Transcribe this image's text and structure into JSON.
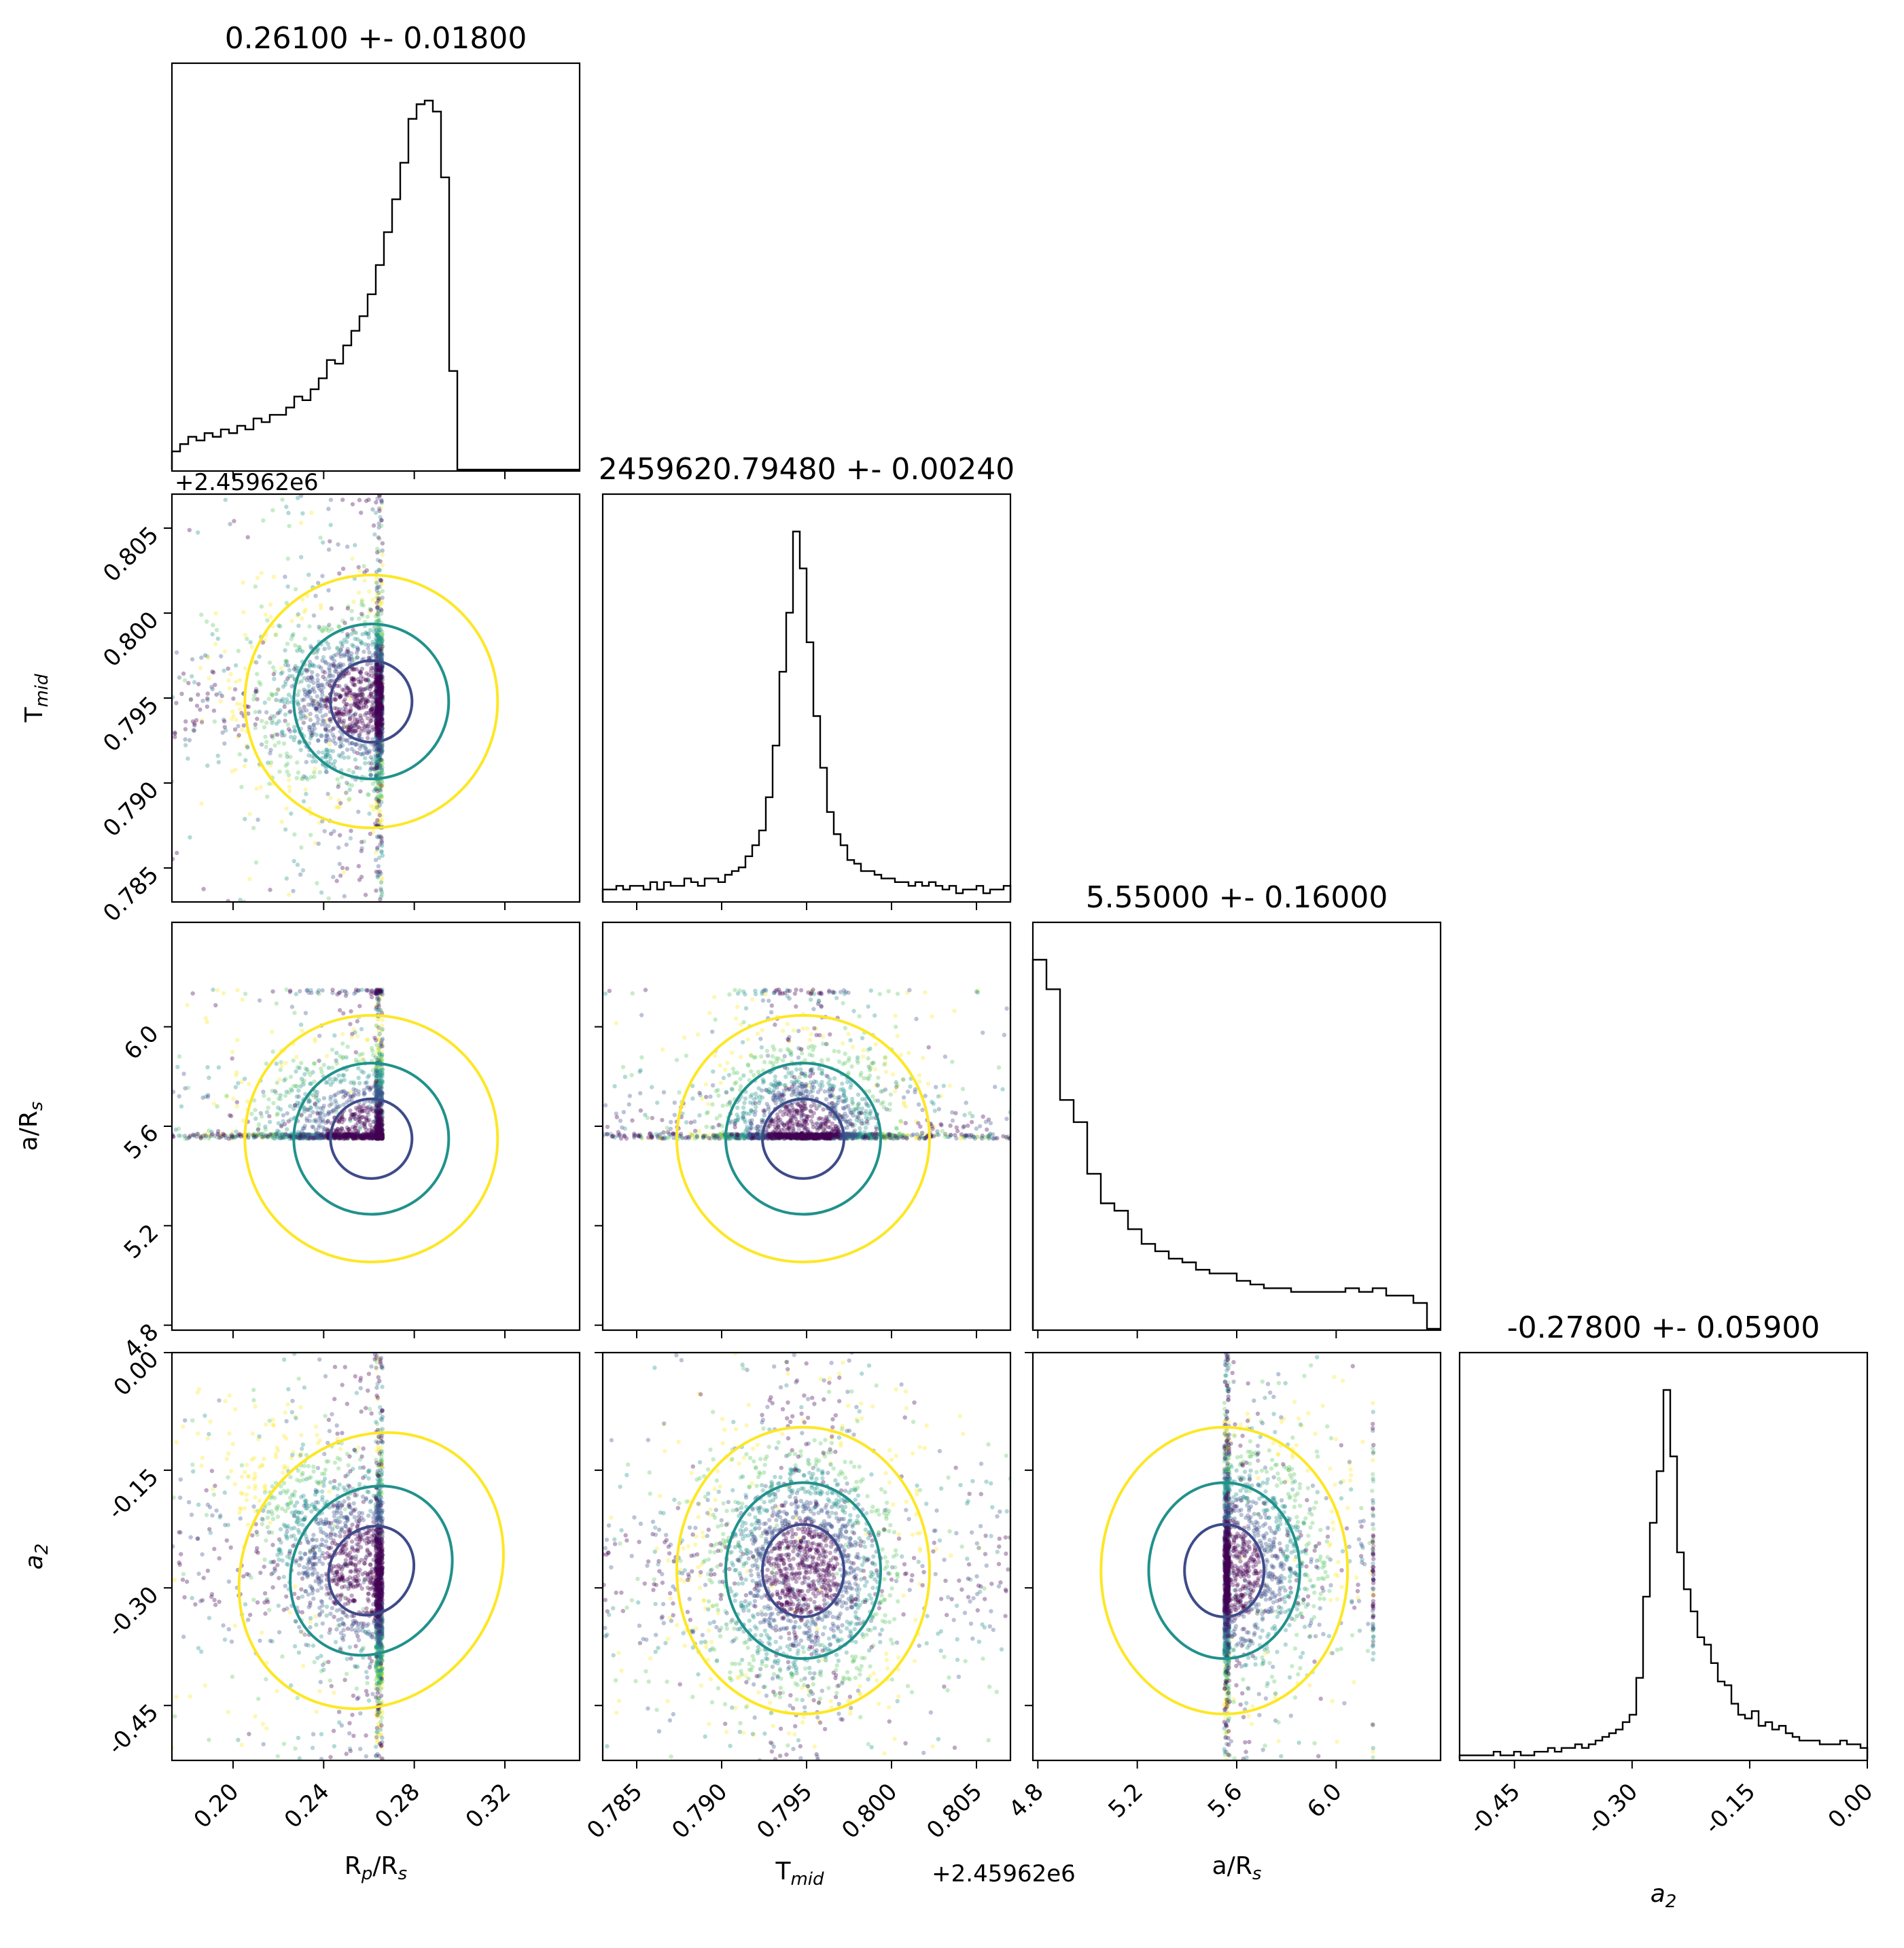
{
  "chart_data": {
    "type": "corner",
    "parameters": [
      {
        "label": "R_p/R_s",
        "title": "0.26100 +- 0.01800",
        "range": [
          0.173,
          0.353
        ],
        "ticks": [
          "0.20",
          "0.24",
          "0.28",
          "0.32"
        ],
        "tick_values": [
          0.2,
          0.24,
          0.28,
          0.32
        ],
        "median": 0.261,
        "sigma": 0.018,
        "upper_bound": 0.266,
        "histogram_counts": [
          5,
          7,
          9,
          8,
          10,
          9,
          11,
          10,
          12,
          11,
          14,
          13,
          15,
          15,
          17,
          20,
          19,
          22,
          25,
          30,
          29,
          34,
          38,
          42,
          48,
          56,
          65,
          74,
          84,
          96,
          100,
          101,
          98,
          80,
          27,
          0,
          0,
          0,
          0,
          0,
          0,
          0,
          0,
          0,
          0,
          0,
          0,
          0,
          0,
          0
        ]
      },
      {
        "label": "T_mid",
        "title": "2459620.79480 +- 0.00240",
        "offset_label": "+2.45962e6",
        "range": [
          0.783,
          0.807
        ],
        "ticks": [
          "0.785",
          "0.790",
          "0.795",
          "0.800",
          "0.805"
        ],
        "tick_values": [
          0.785,
          0.79,
          0.795,
          0.8,
          0.805
        ],
        "median": 0.7948,
        "sigma": 0.0024,
        "histogram_counts": [
          3,
          3,
          4,
          3,
          4,
          4,
          3,
          5,
          3,
          5,
          4,
          4,
          6,
          5,
          4,
          6,
          6,
          5,
          7,
          8,
          9,
          12,
          15,
          19,
          28,
          42,
          62,
          78,
          100,
          90,
          70,
          50,
          36,
          24,
          18,
          15,
          11,
          10,
          8,
          8,
          7,
          6,
          6,
          5,
          5,
          4,
          5,
          4,
          5,
          4,
          3,
          4,
          2,
          3,
          3,
          4,
          2,
          3,
          3,
          4
        ]
      },
      {
        "label": "a/R_s",
        "title": "5.55000 +- 0.16000",
        "range": [
          4.78,
          6.42
        ],
        "ticks": [
          "4.8",
          "5.2",
          "5.6",
          "6.0"
        ],
        "tick_values": [
          4.8,
          5.2,
          5.6,
          6.0
        ],
        "median": 5.55,
        "sigma": 0.16,
        "lower_bound": 5.55,
        "upper_bound": 6.15,
        "histogram_counts": [
          100,
          92,
          62,
          56,
          42,
          34,
          32,
          27,
          23,
          21,
          19,
          18,
          16,
          15,
          15,
          13,
          12,
          11,
          11,
          10,
          10,
          10,
          10,
          11,
          10,
          11,
          9,
          9,
          7,
          0
        ]
      },
      {
        "label": "a_2",
        "title": "-0.27800 +- 0.05900",
        "range": [
          -0.52,
          0.0
        ],
        "ticks": [
          "-0.45",
          "-0.30",
          "-0.15",
          "0.00"
        ],
        "tick_values": [
          -0.45,
          -0.3,
          -0.15,
          0.0
        ],
        "median": -0.278,
        "sigma": 0.059,
        "histogram_counts": [
          1,
          1,
          1,
          1,
          1,
          2,
          1,
          1,
          2,
          1,
          1,
          2,
          2,
          3,
          2,
          3,
          3,
          4,
          3,
          4,
          5,
          6,
          7,
          8,
          10,
          12,
          22,
          44,
          64,
          78,
          100,
          82,
          56,
          46,
          40,
          33,
          31,
          26,
          21,
          20,
          15,
          12,
          11,
          13,
          9,
          10,
          8,
          9,
          7,
          6,
          5,
          5,
          5,
          4,
          4,
          4,
          5,
          4,
          4,
          3
        ]
      }
    ],
    "contour_levels": [
      "1-sigma",
      "2-sigma",
      "3-sigma"
    ],
    "colormap": "viridis",
    "colors": {
      "level_1": "#3e4b89",
      "level_2": "#21918c",
      "level_3": "#fde725",
      "histogram": "#000000",
      "frame": "#000000"
    }
  }
}
